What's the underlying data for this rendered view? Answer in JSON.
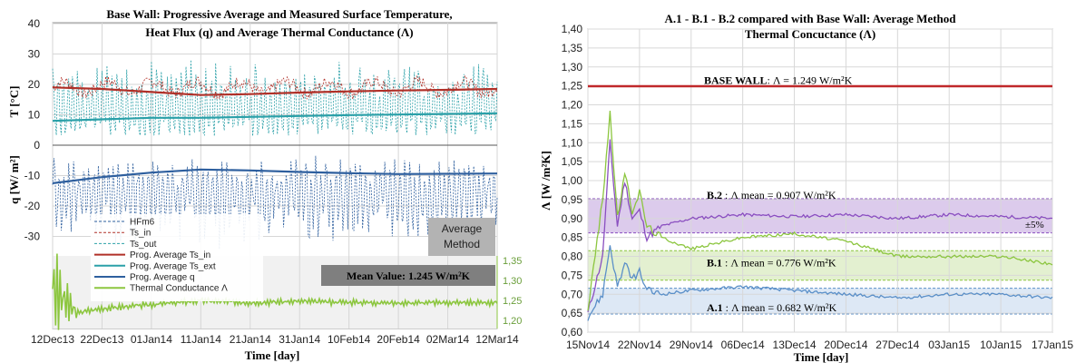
{
  "chart_data": [
    {
      "type": "line",
      "title": [
        "Base Wall: Progressive Average and Measured Surface Temperature,",
        "Heat Flux (q) and Average Thermal Conductance (Λ)"
      ],
      "xlabel": "Time [day]",
      "ylabel_top": "T [°C]",
      "ylabel_mid": "q [W/ m²]",
      "x_ticks": [
        "12Dec13",
        "22Dec13",
        "01Jan14",
        "11Jan14",
        "21Jan14",
        "31Jan14",
        "10Feb14",
        "20Feb14",
        "02Mar14",
        "12Mar14"
      ],
      "y_ticks_left": [
        "40",
        "30",
        "20",
        "10",
        "0",
        "-10",
        "-20",
        "-30"
      ],
      "y_ticks_right": [
        "1,35",
        "1,30",
        "1,25",
        "1,20"
      ],
      "ylim_left": [
        -40,
        40
      ],
      "ylim_right": [
        1.18,
        1.38
      ],
      "legend": [
        {
          "label": "HFm6",
          "color": "#2e5f9e",
          "style": "dashed"
        },
        {
          "label": "Ts_in",
          "color": "#b03028",
          "style": "dashed"
        },
        {
          "label": "Ts_out",
          "color": "#2aa0a8",
          "style": "dashed"
        },
        {
          "label": "Prog. Average Ts_in",
          "color": "#b03028",
          "style": "solid"
        },
        {
          "label": "Prog. Average Ts_ext",
          "color": "#2aa0a8",
          "style": "solid"
        },
        {
          "label": "Prog. Average q",
          "color": "#2e5f9e",
          "style": "solid"
        },
        {
          "label": "Thermal Conductance Λ",
          "color": "#8cc63f",
          "style": "solid"
        }
      ],
      "method_box": [
        "Average",
        "Method"
      ],
      "mean_box": "Mean Value:  1.245 W/m²K",
      "series": [
        {
          "name": "Prog. Average Ts_in",
          "x": [
            0,
            10,
            20,
            30,
            40,
            50,
            60,
            70,
            80,
            90
          ],
          "values": [
            19,
            18.5,
            17.5,
            16.5,
            16.8,
            17.3,
            17.7,
            18,
            18.2,
            18.5
          ]
        },
        {
          "name": "Prog. Average Ts_ext",
          "x": [
            0,
            10,
            20,
            30,
            40,
            50,
            60,
            70,
            80,
            90
          ],
          "values": [
            8,
            8.5,
            9,
            9,
            9.3,
            9.6,
            9.9,
            10.1,
            10.3,
            10.5
          ]
        },
        {
          "name": "Prog. Average q",
          "x": [
            0,
            10,
            20,
            30,
            40,
            50,
            60,
            70,
            80,
            90
          ],
          "values": [
            -12.5,
            -10.5,
            -9,
            -8,
            -8.3,
            -8.8,
            -9.2,
            -9.5,
            -9.4,
            -9.3
          ]
        },
        {
          "name": "Thermal Conductance Λ",
          "x": [
            0,
            5,
            10,
            20,
            30,
            40,
            50,
            60,
            70,
            80,
            90
          ],
          "values": [
            1.28,
            1.22,
            1.23,
            1.24,
            1.25,
            1.245,
            1.248,
            1.246,
            1.244,
            1.245,
            1.245
          ]
        }
      ]
    },
    {
      "type": "line",
      "title": [
        "A.1 - B.1 - B.2 compared with Base Wall: Average Method",
        "Thermal Concuctance (Λ)"
      ],
      "xlabel": "Time [day]",
      "ylabel": "Λ [W /m²K]",
      "x_ticks": [
        "15Nov14",
        "22Nov14",
        "29Nov14",
        "06Dec14",
        "13Dec14",
        "20Dec14",
        "27Dec14",
        "03Jan15",
        "10Jan15",
        "17Jan15"
      ],
      "y_ticks": [
        "1,40",
        "1,35",
        "1,30",
        "1,25",
        "1,20",
        "1,15",
        "1,10",
        "1,05",
        "1,00",
        "0,95",
        "0,90",
        "0,85",
        "0,80",
        "0,75",
        "0,70",
        "0,65",
        "0,60"
      ],
      "ylim": [
        0.6,
        1.4
      ],
      "ref_label": "BASE WALL",
      "ref_text": ":  Λ = 1.249 W/m²K",
      "ref_value": 1.249,
      "band_note": "±5%",
      "annotations": [
        {
          "id": "B.2",
          "text": " :  Λ mean = 0.907 W/m²K",
          "mean": 0.907,
          "band": [
            0.862,
            0.952
          ],
          "color": "#8a4fc0",
          "fill": "#dccbec"
        },
        {
          "id": "B.1",
          "text": " :  Λ mean = 0.776 W/m²K",
          "mean": 0.776,
          "band": [
            0.737,
            0.815
          ],
          "color": "#8cc63f",
          "fill": "#e3f0d0"
        },
        {
          "id": "A.1",
          "text": " :  Λ mean = 0.682 W/m²K",
          "mean": 0.682,
          "band": [
            0.648,
            0.716
          ],
          "color": "#5a8fc8",
          "fill": "#dde8f5"
        }
      ],
      "series": [
        {
          "name": "B.2",
          "x": [
            0,
            2,
            3,
            4,
            5,
            6,
            7,
            8,
            10,
            14,
            21,
            28,
            35,
            42,
            49,
            56,
            63
          ],
          "values": [
            0.65,
            0.8,
            1.1,
            0.88,
            1.0,
            0.9,
            0.92,
            0.85,
            0.88,
            0.9,
            0.91,
            0.905,
            0.91,
            0.9,
            0.91,
            0.905,
            0.9
          ]
        },
        {
          "name": "B.1",
          "x": [
            0,
            2,
            3,
            4,
            5,
            6,
            7,
            8,
            10,
            14,
            21,
            28,
            35,
            42,
            49,
            56,
            63
          ],
          "values": [
            0.66,
            0.95,
            1.18,
            0.9,
            1.02,
            0.92,
            0.97,
            0.88,
            0.85,
            0.82,
            0.85,
            0.86,
            0.84,
            0.8,
            0.8,
            0.8,
            0.78
          ]
        },
        {
          "name": "A.1",
          "x": [
            0,
            2,
            3,
            4,
            5,
            6,
            7,
            8,
            10,
            14,
            21,
            28,
            35,
            42,
            49,
            56,
            63
          ],
          "values": [
            0.64,
            0.7,
            0.83,
            0.72,
            0.78,
            0.74,
            0.76,
            0.71,
            0.7,
            0.71,
            0.72,
            0.71,
            0.7,
            0.69,
            0.7,
            0.7,
            0.69
          ]
        }
      ]
    }
  ]
}
